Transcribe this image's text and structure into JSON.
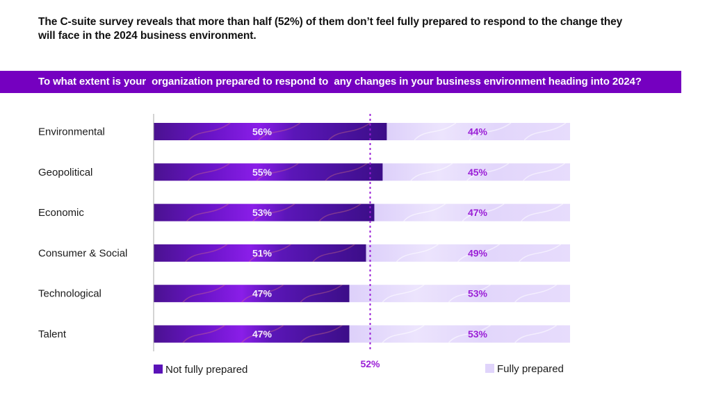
{
  "headline": "The C-suite survey reveals that more than half (52%) of them don’t feel fully prepared to respond to the change they will face in the 2024 business environment.",
  "banner": {
    "question": "To what extent is your  organization prepared to respond to  any changes in your business environment heading into 2024?",
    "color": "#7500c0"
  },
  "chart_data": {
    "type": "bar",
    "orientation": "horizontal",
    "stacked": true,
    "title": "To what extent is your organization prepared to respond to any changes in your business environment heading into 2024?",
    "xlabel": "",
    "ylabel": "",
    "xlim": [
      0,
      100
    ],
    "grid": false,
    "categories": [
      "Environmental",
      "Geopolitical",
      "Economic",
      "Consumer & Social",
      "Technological",
      "Talent"
    ],
    "series": [
      {
        "name": "Not fully prepared",
        "values": [
          56,
          55,
          53,
          51,
          47,
          47
        ],
        "color": "#5a12b8",
        "labels": [
          "56%",
          "55%",
          "53%",
          "51%",
          "47%",
          "47%"
        ]
      },
      {
        "name": "Fully prepared",
        "values": [
          44,
          45,
          47,
          49,
          53,
          53
        ],
        "color": "#e6dcfb",
        "labels": [
          "44%",
          "45%",
          "47%",
          "49%",
          "53%",
          "53%"
        ]
      }
    ],
    "reference_line": {
      "value": 52,
      "label": "52%",
      "style": "dotted",
      "color": "#9a1fd6"
    },
    "legend": {
      "placement": "bottom",
      "entries": [
        "Not fully prepared",
        "Fully prepared"
      ]
    }
  }
}
